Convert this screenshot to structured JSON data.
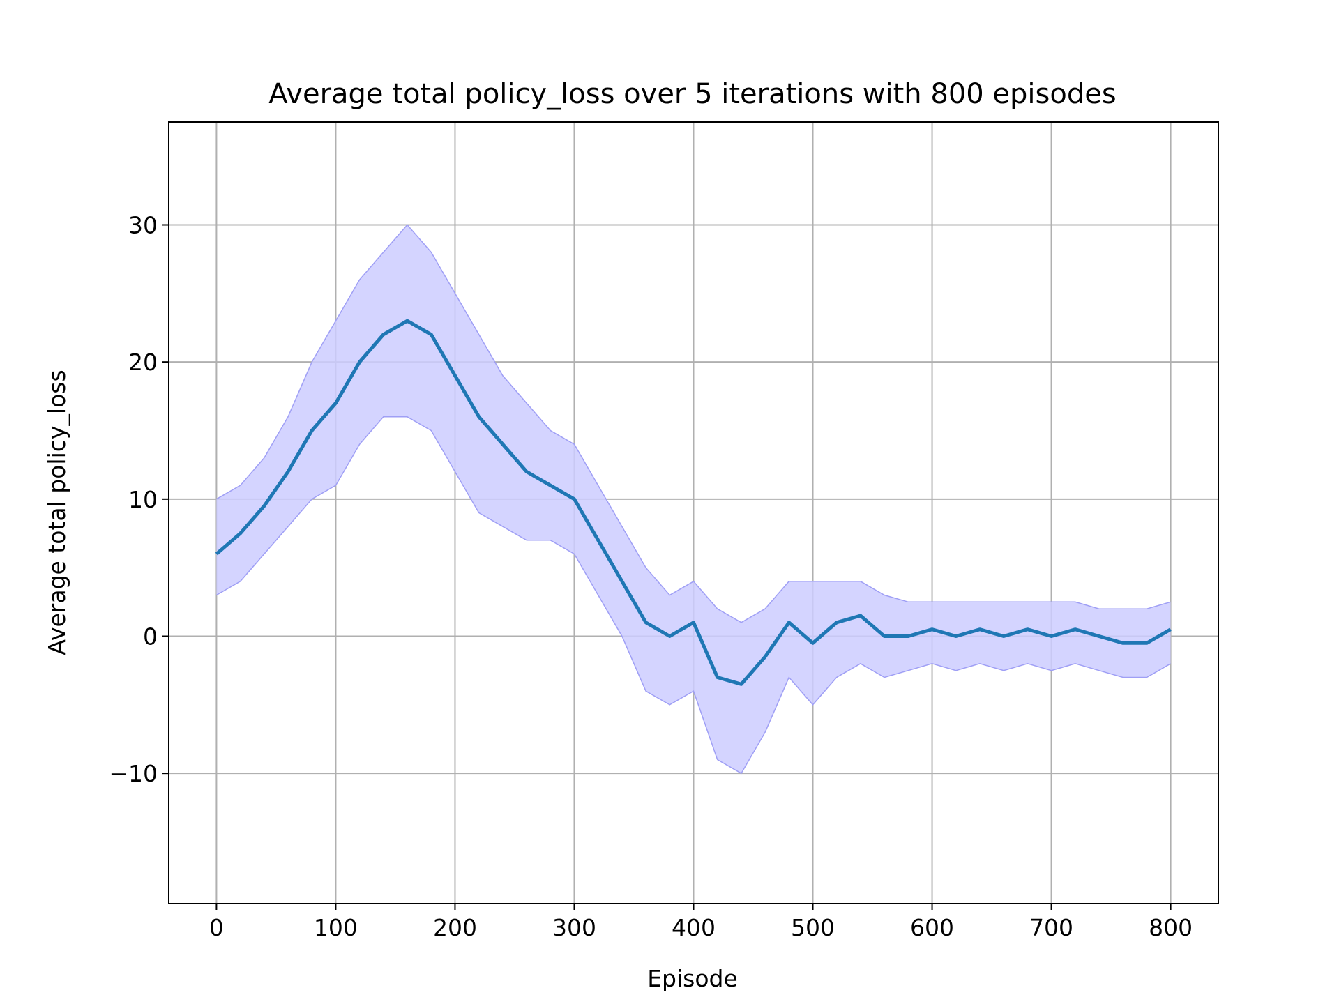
{
  "chart_data": {
    "type": "line",
    "title": "Average total policy_loss over 5 iterations with 800 episodes",
    "xlabel": "Episode",
    "ylabel": "Average total policy_loss",
    "xlim": [
      -40,
      840
    ],
    "ylim": [
      -19.5,
      37.5
    ],
    "grid": true,
    "xticks": [
      0,
      100,
      200,
      300,
      400,
      500,
      600,
      700,
      800
    ],
    "xtick_labels": [
      "0",
      "100",
      "200",
      "300",
      "400",
      "500",
      "600",
      "700",
      "800"
    ],
    "yticks": [
      -10,
      0,
      10,
      20,
      30
    ],
    "ytick_labels": [
      "−10",
      "0",
      "10",
      "20",
      "30"
    ],
    "colors": {
      "mean_line": "#1f77b4",
      "band_fill": "#ccccff",
      "band_edge": "#9f9ff5",
      "grid": "#b0b0b0"
    },
    "series": [
      {
        "kind": "mean",
        "x": [
          0,
          20,
          40,
          60,
          80,
          100,
          120,
          140,
          160,
          180,
          200,
          220,
          240,
          260,
          280,
          300,
          320,
          340,
          360,
          380,
          400,
          420,
          440,
          460,
          480,
          500,
          520,
          540,
          560,
          580,
          600,
          620,
          640,
          660,
          680,
          700,
          720,
          740,
          760,
          780,
          800
        ],
        "y": [
          6,
          7.5,
          9.5,
          12,
          15,
          17,
          20,
          22,
          23,
          22,
          19,
          16,
          14,
          12,
          11,
          10,
          7,
          4,
          1,
          0,
          1,
          -3,
          -3.5,
          -1.5,
          1,
          -0.5,
          1,
          1.5,
          0,
          0,
          0.5,
          0,
          0.5,
          0,
          0.5,
          0,
          0.5,
          0,
          -0.5,
          -0.5,
          0.5
        ]
      },
      {
        "kind": "band-upper",
        "x": [
          0,
          20,
          40,
          60,
          80,
          100,
          120,
          140,
          160,
          180,
          200,
          220,
          240,
          260,
          280,
          300,
          320,
          340,
          360,
          380,
          400,
          420,
          440,
          460,
          480,
          500,
          520,
          540,
          560,
          580,
          600,
          620,
          640,
          660,
          680,
          700,
          720,
          740,
          760,
          780,
          800
        ],
        "y": [
          10,
          11,
          13,
          16,
          20,
          23,
          26,
          28,
          30,
          28,
          25,
          22,
          19,
          17,
          15,
          14,
          11,
          8,
          5,
          3,
          4,
          2,
          1,
          2,
          4,
          4,
          4,
          4,
          3,
          2.5,
          2.5,
          2.5,
          2.5,
          2.5,
          2.5,
          2.5,
          2.5,
          2,
          2,
          2,
          2.5
        ]
      },
      {
        "kind": "band-lower",
        "x": [
          0,
          20,
          40,
          60,
          80,
          100,
          120,
          140,
          160,
          180,
          200,
          220,
          240,
          260,
          280,
          300,
          320,
          340,
          360,
          380,
          400,
          420,
          440,
          460,
          480,
          500,
          520,
          540,
          560,
          580,
          600,
          620,
          640,
          660,
          680,
          700,
          720,
          740,
          760,
          780,
          800
        ],
        "y": [
          3,
          4,
          6,
          8,
          10,
          11,
          14,
          16,
          16,
          15,
          12,
          9,
          8,
          7,
          7,
          6,
          3,
          0,
          -4,
          -5,
          -4,
          -9,
          -10,
          -7,
          -3,
          -5,
          -3,
          -2,
          -3,
          -2.5,
          -2,
          -2.5,
          -2,
          -2.5,
          -2,
          -2.5,
          -2,
          -2.5,
          -3,
          -3,
          -2
        ]
      }
    ]
  }
}
